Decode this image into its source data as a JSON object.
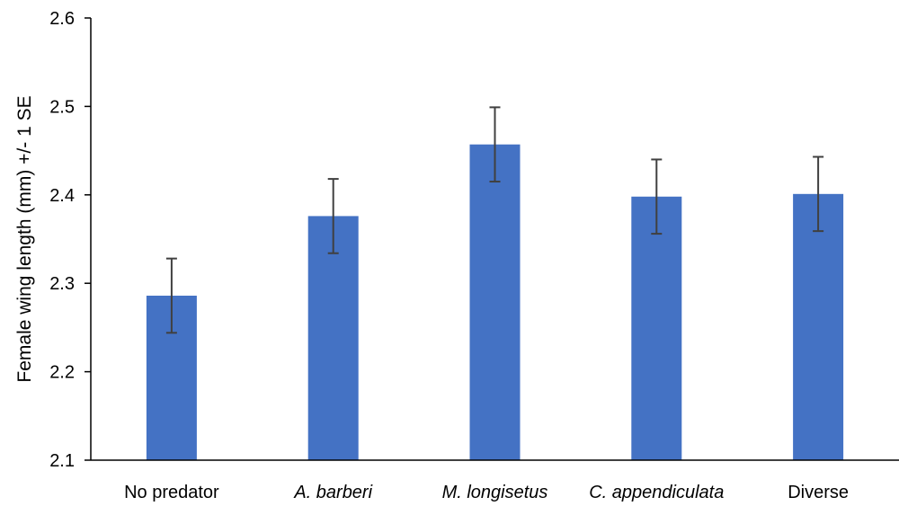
{
  "chart_data": {
    "type": "bar",
    "title": "",
    "xlabel": "",
    "ylabel": "Female wing length (mm) +/- 1 SE",
    "ylim": [
      2.1,
      2.6
    ],
    "yticks": [
      "2.1",
      "2.2",
      "2.3",
      "2.4",
      "2.5",
      "2.6"
    ],
    "grid": false,
    "categories": [
      "No predator",
      "A. barberi",
      "M. longisetus",
      "C. appendiculata",
      "Diverse"
    ],
    "italic_categories": [
      false,
      true,
      true,
      true,
      false
    ],
    "values": [
      2.286,
      2.376,
      2.457,
      2.398,
      2.401
    ],
    "errors": [
      0.042,
      0.042,
      0.042,
      0.042,
      0.042
    ],
    "bar_color": "#4472C4",
    "error_color": "#404040"
  }
}
